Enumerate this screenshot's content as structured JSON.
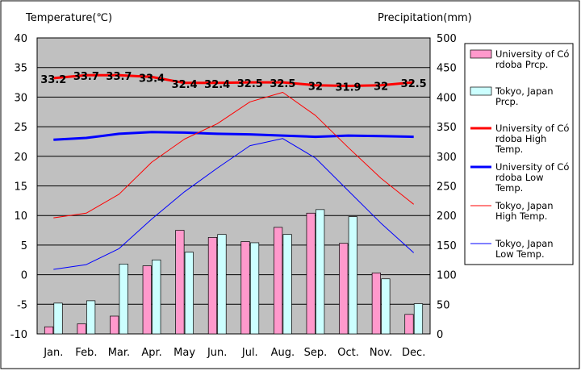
{
  "chart_data": {
    "type": "bar+line",
    "categories": [
      "Jan.",
      "Feb.",
      "Mar.",
      "Apr.",
      "May",
      "Jun.",
      "Jul.",
      "Aug.",
      "Sep.",
      "Oct.",
      "Nov.",
      "Dec."
    ],
    "y_left": {
      "label": "Temperature(℃)",
      "range": [
        -10,
        40
      ],
      "ticks": [
        "40",
        "35",
        "30",
        "25",
        "20",
        "15",
        "10",
        "5",
        "0",
        "-5",
        "-10"
      ]
    },
    "y_right": {
      "label": "Precipitation(mm)",
      "range": [
        0,
        500
      ],
      "ticks": [
        "500",
        "450",
        "400",
        "350",
        "300",
        "250",
        "200",
        "150",
        "100",
        "50",
        "0"
      ]
    },
    "grid": true,
    "legend_position": "right",
    "bar_series": [
      {
        "name": "University of Córdoba Prcp.",
        "legend_lines": [
          "University of Có",
          "rdoba Prcp."
        ],
        "color": "#ff99cc",
        "axis": "right",
        "values": [
          12,
          17,
          30,
          115,
          175,
          163,
          156,
          180,
          204,
          153,
          103,
          33
        ]
      },
      {
        "name": "Tokyo, Japan Prcp.",
        "legend_lines": [
          "Tokyo, Japan",
          "Prcp."
        ],
        "color": "#ccffff",
        "axis": "right",
        "values": [
          52,
          56,
          118,
          125,
          138,
          168,
          154,
          168,
          210,
          198,
          93,
          51
        ]
      }
    ],
    "line_series": [
      {
        "name": "University of Córdoba High Temp.",
        "legend_lines": [
          "University of Có",
          "rdoba High",
          "Temp."
        ],
        "color": "#ff0000",
        "width": 3,
        "axis": "left",
        "values": [
          33.2,
          33.7,
          33.7,
          33.4,
          32.4,
          32.4,
          32.5,
          32.5,
          32.0,
          31.9,
          32.0,
          32.5
        ]
      },
      {
        "name": "University of Córdoba Low Temp.",
        "legend_lines": [
          "University of Có",
          "rdoba Low",
          "Temp."
        ],
        "color": "#0000ff",
        "width": 3,
        "axis": "left",
        "values": [
          22.8,
          23.1,
          23.8,
          24.1,
          24.0,
          23.8,
          23.7,
          23.5,
          23.3,
          23.5,
          23.4,
          23.3
        ]
      },
      {
        "name": "Tokyo, Japan High Temp.",
        "legend_lines": [
          "Tokyo, Japan",
          "High Temp."
        ],
        "color": "#ff0000",
        "width": 1,
        "axis": "left",
        "values": [
          9.6,
          10.4,
          13.6,
          19.0,
          22.9,
          25.5,
          29.2,
          30.8,
          26.9,
          21.5,
          16.3,
          11.9
        ]
      },
      {
        "name": "Tokyo, Japan Low Temp.",
        "legend_lines": [
          "Tokyo, Japan",
          "Low Temp."
        ],
        "color": "#0000ff",
        "width": 1,
        "axis": "left",
        "values": [
          0.9,
          1.7,
          4.4,
          9.4,
          14.0,
          18.0,
          21.8,
          23.0,
          19.7,
          14.2,
          8.7,
          3.7
        ]
      }
    ],
    "data_labels": [
      "33.2",
      "33.7",
      "33.7",
      "33.4",
      "32.4",
      "32.4",
      "32.5",
      "32.5",
      "32",
      "31.9",
      "32",
      "32.5"
    ],
    "colors": {
      "plot_background": "#c0c0c0",
      "gridline": "#000000",
      "frame": "#000000"
    }
  }
}
